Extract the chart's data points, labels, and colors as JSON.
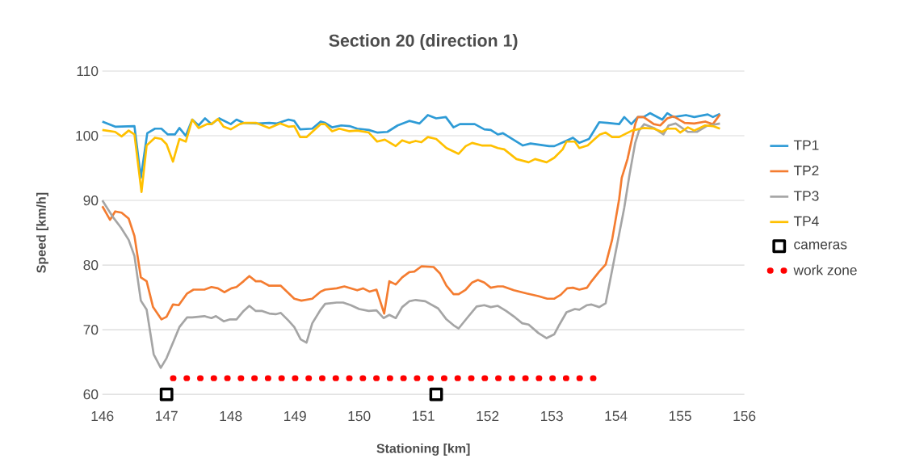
{
  "chart_data": {
    "type": "line",
    "title": "Section 20 (direction 1)",
    "xlabel": "Stationing [km]",
    "ylabel": "Speed [km/h]",
    "xlim": [
      146,
      156
    ],
    "ylim": [
      60,
      110
    ],
    "xticks": [
      146,
      147,
      148,
      149,
      150,
      151,
      152,
      153,
      154,
      155,
      156
    ],
    "yticks": [
      60,
      70,
      80,
      90,
      100,
      110
    ],
    "grid": "y",
    "legend": "right",
    "series": [
      {
        "name": "TP1",
        "color": "#2e9bd6",
        "marker": "none",
        "line_style": "solid",
        "x": [
          146.0,
          146.2,
          146.5,
          146.6,
          146.7,
          146.82,
          146.92,
          147.02,
          147.13,
          147.2,
          147.3,
          147.4,
          147.5,
          147.6,
          147.7,
          147.82,
          148.0,
          148.09,
          148.2,
          148.43,
          148.6,
          148.72,
          148.9,
          148.99,
          149.08,
          149.27,
          149.4,
          149.47,
          149.58,
          149.72,
          149.85,
          149.97,
          150.15,
          150.28,
          150.44,
          150.6,
          150.78,
          150.94,
          151.07,
          151.2,
          151.35,
          151.47,
          151.57,
          151.8,
          151.95,
          152.05,
          152.16,
          152.24,
          152.55,
          152.67,
          152.96,
          153.04,
          153.2,
          153.33,
          153.43,
          153.58,
          153.74,
          153.87,
          154.05,
          154.13,
          154.24,
          154.34,
          154.43,
          154.53,
          154.72,
          154.8,
          154.9,
          155.09,
          155.22,
          155.43,
          155.51,
          155.62
        ],
        "values": [
          102.2,
          101.4,
          101.5,
          93.5,
          100.4,
          101.1,
          101.1,
          100.2,
          100.2,
          101.2,
          100.0,
          102.5,
          101.6,
          102.7,
          101.8,
          102.7,
          101.8,
          102.5,
          102.0,
          101.9,
          102.0,
          101.9,
          102.5,
          102.3,
          101.0,
          101.1,
          102.2,
          102.0,
          101.3,
          101.6,
          101.5,
          101.1,
          100.9,
          100.5,
          100.6,
          101.6,
          102.3,
          101.9,
          103.2,
          102.7,
          102.9,
          101.3,
          101.8,
          101.8,
          101.0,
          100.9,
          100.2,
          100.4,
          98.5,
          98.8,
          98.4,
          98.4,
          99.1,
          99.7,
          98.9,
          99.5,
          102.1,
          102.0,
          101.8,
          102.9,
          101.8,
          102.9,
          102.9,
          103.5,
          102.5,
          103.5,
          102.9,
          103.2,
          102.9,
          103.3,
          102.9,
          103.4
        ]
      },
      {
        "name": "TP2",
        "color": "#f47c30",
        "marker": "none",
        "line_style": "solid",
        "x": [
          146.0,
          146.12,
          146.2,
          146.3,
          146.41,
          146.5,
          146.6,
          146.69,
          146.79,
          146.92,
          147.0,
          147.1,
          147.19,
          147.32,
          147.42,
          147.59,
          147.7,
          147.8,
          147.9,
          148.01,
          148.09,
          148.2,
          148.29,
          148.39,
          148.47,
          148.6,
          148.78,
          148.99,
          149.1,
          149.27,
          149.4,
          149.47,
          149.65,
          149.77,
          149.97,
          150.06,
          150.16,
          150.27,
          150.39,
          150.47,
          150.57,
          150.67,
          150.78,
          150.86,
          150.97,
          151.16,
          151.26,
          151.36,
          151.47,
          151.55,
          151.66,
          151.76,
          151.85,
          151.95,
          152.05,
          152.16,
          152.24,
          152.41,
          152.61,
          152.79,
          152.93,
          153.04,
          153.14,
          153.24,
          153.33,
          153.43,
          153.55,
          153.62,
          153.74,
          153.84,
          153.94,
          154.05,
          154.09,
          154.18,
          154.3,
          154.34,
          154.43,
          154.59,
          154.69,
          154.8,
          154.9,
          155.07,
          155.22,
          155.39,
          155.51,
          155.62
        ],
        "values": [
          89.1,
          87.0,
          88.3,
          88.1,
          87.2,
          84.5,
          78.1,
          77.5,
          73.5,
          71.6,
          72.0,
          73.9,
          73.8,
          75.6,
          76.2,
          76.2,
          76.6,
          76.4,
          75.8,
          76.4,
          76.6,
          77.5,
          78.3,
          77.5,
          77.5,
          76.8,
          76.8,
          74.8,
          74.5,
          74.8,
          75.9,
          76.2,
          76.4,
          76.7,
          76.1,
          76.4,
          75.9,
          76.2,
          72.5,
          77.5,
          77.0,
          78.1,
          78.9,
          79.0,
          79.8,
          79.7,
          78.7,
          76.8,
          75.5,
          75.5,
          76.2,
          77.3,
          77.7,
          77.3,
          76.5,
          76.7,
          76.7,
          76.1,
          75.6,
          75.2,
          74.8,
          74.8,
          75.4,
          76.4,
          76.5,
          76.2,
          76.5,
          77.5,
          79.0,
          80.1,
          83.9,
          90.2,
          93.5,
          96.4,
          101.8,
          102.9,
          102.9,
          101.8,
          101.6,
          102.7,
          103.0,
          102.0,
          101.9,
          102.2,
          101.8,
          103.3
        ]
      },
      {
        "name": "TP3",
        "color": "#a5a5a5",
        "marker": "none",
        "line_style": "solid",
        "x": [
          146.0,
          146.16,
          146.29,
          146.41,
          146.5,
          146.6,
          146.69,
          146.8,
          146.91,
          147.0,
          147.13,
          147.2,
          147.32,
          147.4,
          147.59,
          147.7,
          147.77,
          147.89,
          147.99,
          148.09,
          148.2,
          148.29,
          148.39,
          148.49,
          148.6,
          148.7,
          148.78,
          148.9,
          148.99,
          149.09,
          149.18,
          149.27,
          149.4,
          149.47,
          149.65,
          149.75,
          149.87,
          150.0,
          150.15,
          150.27,
          150.38,
          150.47,
          150.57,
          150.67,
          150.78,
          150.88,
          151.03,
          151.23,
          151.36,
          151.47,
          151.55,
          151.68,
          151.83,
          151.95,
          152.05,
          152.16,
          152.29,
          152.43,
          152.54,
          152.64,
          152.79,
          152.92,
          153.04,
          153.12,
          153.23,
          153.36,
          153.43,
          153.55,
          153.62,
          153.74,
          153.84,
          153.96,
          154.13,
          154.21,
          154.3,
          154.36,
          154.44,
          154.59,
          154.74,
          154.82,
          154.93,
          155.12,
          155.26,
          155.41,
          155.62
        ],
        "values": [
          90.0,
          87.5,
          85.8,
          83.9,
          81.4,
          74.5,
          73.1,
          66.2,
          64.1,
          65.6,
          68.7,
          70.4,
          71.9,
          71.9,
          72.1,
          71.8,
          72.1,
          71.3,
          71.6,
          71.6,
          72.9,
          73.7,
          72.9,
          72.9,
          72.5,
          72.4,
          72.6,
          71.4,
          70.4,
          68.5,
          68.0,
          71.0,
          73.1,
          74.0,
          74.2,
          74.2,
          73.8,
          73.2,
          72.9,
          73.0,
          71.8,
          72.3,
          71.8,
          73.5,
          74.4,
          74.6,
          74.4,
          73.3,
          71.6,
          70.7,
          70.2,
          71.8,
          73.6,
          73.8,
          73.5,
          73.7,
          72.9,
          71.9,
          71.0,
          70.8,
          69.5,
          68.7,
          69.3,
          70.8,
          72.7,
          73.2,
          73.1,
          73.8,
          73.9,
          73.5,
          74.1,
          80.2,
          88.9,
          93.9,
          98.9,
          100.8,
          101.8,
          101.2,
          100.2,
          101.6,
          101.9,
          100.6,
          100.6,
          101.5,
          101.9
        ]
      },
      {
        "name": "TP4",
        "color": "#ffc000",
        "marker": "none",
        "line_style": "solid",
        "x": [
          146.0,
          146.2,
          146.3,
          146.41,
          146.5,
          146.61,
          146.69,
          146.82,
          146.92,
          147.0,
          147.1,
          147.2,
          147.3,
          147.4,
          147.5,
          147.63,
          147.7,
          147.8,
          147.89,
          148.0,
          148.14,
          148.22,
          148.39,
          148.6,
          148.77,
          148.9,
          148.99,
          149.08,
          149.18,
          149.4,
          149.47,
          149.58,
          149.69,
          149.85,
          149.97,
          150.15,
          150.28,
          150.4,
          150.57,
          150.67,
          150.78,
          150.88,
          150.97,
          151.07,
          151.2,
          151.36,
          151.55,
          151.66,
          151.76,
          151.91,
          152.05,
          152.16,
          152.26,
          152.45,
          152.64,
          152.74,
          152.92,
          153.04,
          153.17,
          153.23,
          153.36,
          153.43,
          153.56,
          153.67,
          153.75,
          153.84,
          153.94,
          154.05,
          154.25,
          154.43,
          154.59,
          154.72,
          154.8,
          154.93,
          155.0,
          155.12,
          155.22,
          155.39,
          155.51,
          155.62
        ],
        "values": [
          100.9,
          100.6,
          99.9,
          100.8,
          100.2,
          91.3,
          98.5,
          99.7,
          99.5,
          98.7,
          96.0,
          99.5,
          99.1,
          102.5,
          101.2,
          101.8,
          101.8,
          102.6,
          101.4,
          101.0,
          101.8,
          102.0,
          102.0,
          101.2,
          101.9,
          101.4,
          101.5,
          99.8,
          99.8,
          101.8,
          101.8,
          100.7,
          101.1,
          100.7,
          100.8,
          100.5,
          99.1,
          99.4,
          98.4,
          99.3,
          98.9,
          99.2,
          99.0,
          99.8,
          99.5,
          98.1,
          97.2,
          98.4,
          98.9,
          98.5,
          98.5,
          98.1,
          97.9,
          96.4,
          95.9,
          96.4,
          95.9,
          96.6,
          97.9,
          99.1,
          99.1,
          98.1,
          98.5,
          99.5,
          100.2,
          100.5,
          99.8,
          99.8,
          100.8,
          101.2,
          101.1,
          100.6,
          101.1,
          101.1,
          100.5,
          101.3,
          100.8,
          101.6,
          101.5,
          101.1
        ]
      },
      {
        "name": "cameras",
        "color": "#000000",
        "type": "scatter",
        "marker": "square",
        "x": [
          147.0,
          151.2
        ],
        "values": [
          60,
          60
        ]
      },
      {
        "name": "work zone",
        "color": "#ff0000",
        "marker": "none",
        "line_style": "dotted",
        "x": [
          147.1,
          153.65
        ],
        "values": [
          62.5,
          62.5
        ]
      }
    ]
  }
}
